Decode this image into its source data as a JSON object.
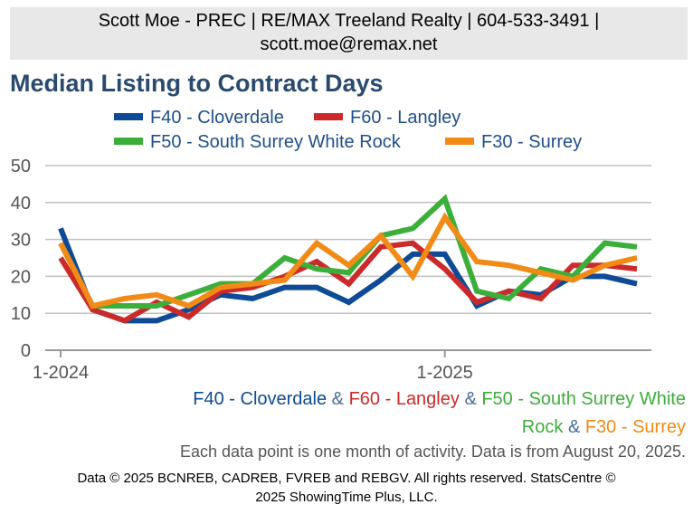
{
  "header": {
    "line1": "Scott Moe - PREC | RE/MAX Treeland Realty | 604-533-3491 |",
    "line2": "scott.moe@remax.net"
  },
  "chart_data": {
    "type": "line",
    "title": "Median Listing to Contract Days",
    "ylim": [
      0,
      50
    ],
    "yticks": [
      "0",
      "10",
      "20",
      "30",
      "40",
      "50"
    ],
    "xtick_labels": [
      "1-2024",
      "1-2025"
    ],
    "x": [
      "2024-01",
      "2024-02",
      "2024-03",
      "2024-04",
      "2024-05",
      "2024-06",
      "2024-07",
      "2024-08",
      "2024-09",
      "2024-10",
      "2024-11",
      "2024-12",
      "2025-01",
      "2025-02",
      "2025-03",
      "2025-04",
      "2025-05",
      "2025-06",
      "2025-07"
    ],
    "grid": true,
    "legend_position": "top",
    "series": [
      {
        "name": "F40 - Cloverdale",
        "color": "#0e4a96",
        "values": [
          33,
          11,
          8,
          8,
          11,
          15,
          14,
          17,
          17,
          13,
          19,
          26,
          26,
          12,
          16,
          15,
          20,
          20,
          18
        ]
      },
      {
        "name": "F60 - Langley",
        "color": "#cc2a2a",
        "values": [
          25,
          11,
          8,
          13,
          9,
          16,
          17,
          20,
          24,
          18,
          28,
          29,
          22,
          13,
          16,
          14,
          23,
          23,
          22
        ]
      },
      {
        "name": "F50 - South Surrey White Rock",
        "color": "#3cae3a",
        "values": [
          29,
          12,
          12,
          12,
          15,
          18,
          18,
          25,
          22,
          21,
          31,
          33,
          41,
          16,
          14,
          22,
          20,
          29,
          28
        ]
      },
      {
        "name": "F30 - Surrey",
        "color": "#f28a16",
        "values": [
          29,
          12,
          14,
          15,
          12,
          17,
          18,
          19,
          29,
          23,
          31,
          20,
          36,
          24,
          23,
          21,
          19,
          23,
          25
        ]
      }
    ]
  },
  "caption": {
    "s1": "F40 - Cloverdale",
    "amp": "&",
    "s2": "F60 - Langley",
    "s3a": "F50 - South Surrey White",
    "s3b": "Rock",
    "s4": "F30 - Surrey"
  },
  "notes": {
    "activity": "Each data point is one month of activity. Data is from August 20, 2025.",
    "copyright1": "Data © 2025 BCNREB, CADREB, FVREB and REBGV. All rights reserved. StatsCentre ©",
    "copyright2": "2025 ShowingTime Plus, LLC."
  }
}
